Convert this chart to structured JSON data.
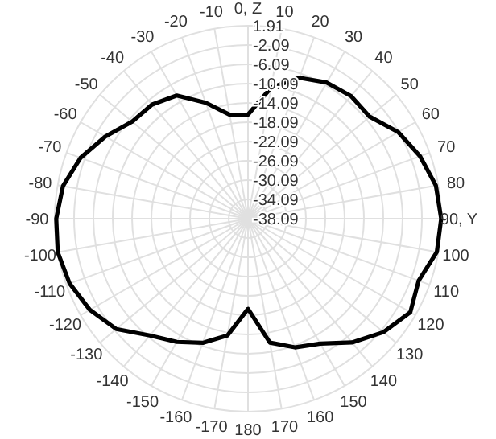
{
  "chart_data": {
    "type": "radar",
    "categories": [
      "0, Z",
      "10",
      "20",
      "30",
      "40",
      "50",
      "60",
      "70",
      "80",
      "90, Y",
      "100",
      "110",
      "120",
      "130",
      "140",
      "150",
      "160",
      "170",
      "180",
      "-170",
      "-160",
      "-150",
      "-140",
      "-130",
      "-120",
      "-110",
      "-100",
      "-90",
      "-80",
      "-70",
      "-60",
      "-50",
      "-40",
      "-30",
      "-20",
      "-10"
    ],
    "series": [
      {
        "color": "#000000",
        "values": [
          -16.5,
          -10.5,
          -7.0,
          -5.5,
          -4.9,
          -5.2,
          -2.2,
          -0.2,
          1.4,
          1.9,
          1.6,
          -0.5,
          0.7,
          -1.5,
          -4.6,
          -8.2,
          -9.7,
          -12.0,
          -19.4,
          -13.5,
          -10.7,
          -8.6,
          -6.5,
          -2.5,
          -0.3,
          1.2,
          1.9,
          1.6,
          0.8,
          -1.2,
          -4.0,
          -6.8,
          -7.2,
          -8.6,
          -12.5,
          -16.2
        ]
      }
    ],
    "ylim": [
      -38.09,
      1.91
    ],
    "yticks": [
      1.91,
      -2.09,
      -6.09,
      -10.09,
      -14.09,
      -18.09,
      -22.09,
      -26.09,
      -30.09,
      -34.09,
      -38.09
    ],
    "grid": true
  }
}
